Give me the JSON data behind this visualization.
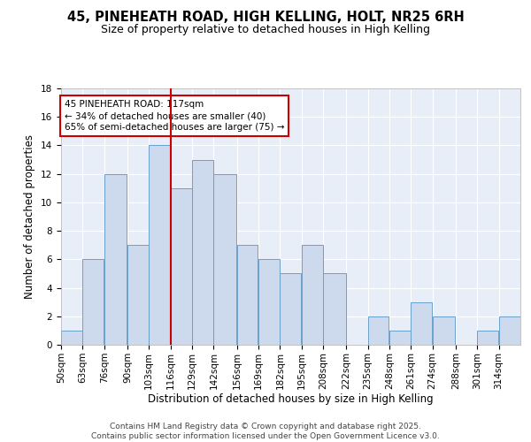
{
  "title1": "45, PINEHEATH ROAD, HIGH KELLING, HOLT, NR25 6RH",
  "title2": "Size of property relative to detached houses in High Kelling",
  "xlabel": "Distribution of detached houses by size in High Kelling",
  "ylabel": "Number of detached properties",
  "bins": [
    "50sqm",
    "63sqm",
    "76sqm",
    "90sqm",
    "103sqm",
    "116sqm",
    "129sqm",
    "142sqm",
    "156sqm",
    "169sqm",
    "182sqm",
    "195sqm",
    "208sqm",
    "222sqm",
    "235sqm",
    "248sqm",
    "261sqm",
    "274sqm",
    "288sqm",
    "301sqm",
    "314sqm"
  ],
  "bin_edges": [
    50,
    63,
    76,
    90,
    103,
    116,
    129,
    142,
    156,
    169,
    182,
    195,
    208,
    222,
    235,
    248,
    261,
    274,
    288,
    301,
    314,
    327
  ],
  "counts": [
    1,
    6,
    12,
    7,
    14,
    11,
    13,
    12,
    7,
    6,
    5,
    7,
    5,
    0,
    2,
    1,
    3,
    2,
    0,
    1,
    2
  ],
  "bar_facecolor": "#cdd9ed",
  "bar_edgecolor": "#6aa0cc",
  "property_line_x": 116,
  "property_line_color": "#cc0000",
  "annotation_text": "45 PINEHEATH ROAD: 117sqm\n← 34% of detached houses are smaller (40)\n65% of semi-detached houses are larger (75) →",
  "annotation_box_edgecolor": "#cc0000",
  "annotation_box_facecolor": "#ffffff",
  "ylim": [
    0,
    18
  ],
  "yticks": [
    0,
    2,
    4,
    6,
    8,
    10,
    12,
    14,
    16,
    18
  ],
  "background_color": "#e8eef8",
  "grid_color": "#ffffff",
  "fig_facecolor": "#ffffff",
  "footer_text": "Contains HM Land Registry data © Crown copyright and database right 2025.\nContains public sector information licensed under the Open Government Licence v3.0.",
  "title_fontsize": 10.5,
  "subtitle_fontsize": 9,
  "axis_label_fontsize": 8.5,
  "tick_fontsize": 7.5,
  "annotation_fontsize": 7.5,
  "footer_fontsize": 6.5
}
